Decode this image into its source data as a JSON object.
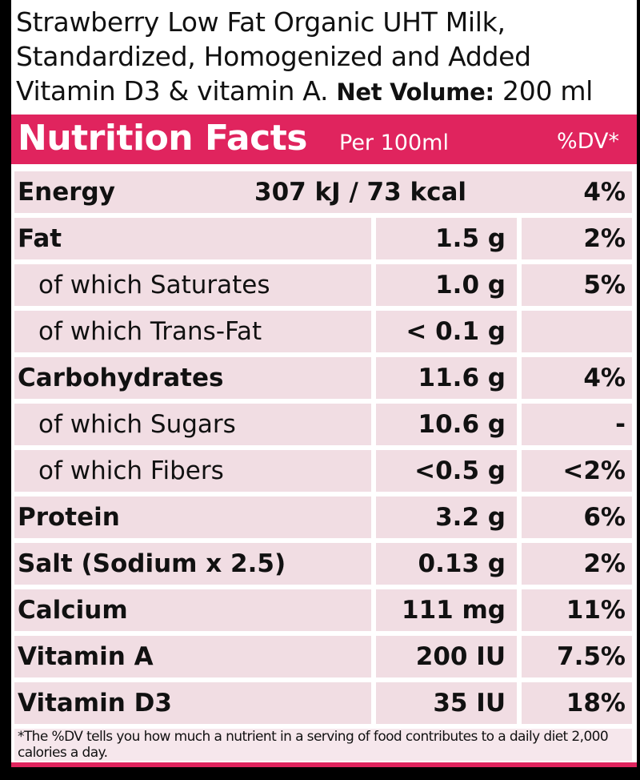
{
  "intro": {
    "line1": "Strawberry Low Fat Organic UHT Milk,",
    "line2": "Standardized, Homogenized and Added",
    "line3": "Vitamin D3 & vitamin A.",
    "net_label": "Net Volume:",
    "net_value": "200 ml"
  },
  "header": {
    "title": "Nutrition Facts",
    "per": "Per 100ml",
    "dv": "%DV*"
  },
  "energy": {
    "label": "Energy",
    "value": "307 kJ / 73 kcal",
    "dv": "4%"
  },
  "rows": [
    {
      "label": "Fat",
      "value": "1.5 g",
      "dv": "2%"
    },
    {
      "label": "of which Saturates",
      "value": "1.0 g",
      "dv": "5%"
    },
    {
      "label": "of which Trans-Fat",
      "value": "< 0.1 g",
      "dv": ""
    },
    {
      "label": "Carbohydrates",
      "value": "11.6 g",
      "dv": "4%"
    },
    {
      "label": "of which Sugars",
      "value": "10.6 g",
      "dv": "-"
    },
    {
      "label": "of which Fibers",
      "value": "<0.5 g",
      "dv": "<2%"
    },
    {
      "label": "Protein",
      "value": "3.2 g",
      "dv": "6%"
    },
    {
      "label": "Salt (Sodium x 2.5)",
      "value": "0.13 g",
      "dv": "2%"
    },
    {
      "label": "Calcium",
      "value": "111 mg",
      "dv": "11%"
    },
    {
      "label": "Vitamin A",
      "value": "200 IU",
      "dv": "7.5%"
    },
    {
      "label": "Vitamin D3",
      "value": "35 IU",
      "dv": "18%"
    }
  ],
  "footnote": "*The %DV tells you how much a nutrient in a serving of food contributes to a daily diet 2,000 calories a day."
}
